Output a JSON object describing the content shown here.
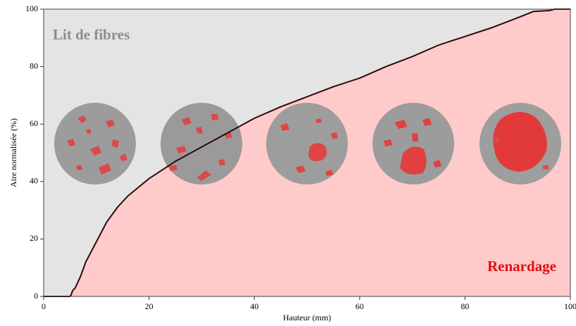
{
  "chart_data": {
    "type": "area-line",
    "x_label": "Hauteur (mm)",
    "y_label": "Aire normalisée (%)",
    "annotations": [
      "Lit de fibres",
      "Renardage"
    ],
    "x": [
      0,
      5,
      5.2,
      5.5,
      6,
      7,
      8,
      10,
      12,
      14,
      16,
      18,
      20,
      25,
      30,
      35,
      40,
      45,
      50,
      55,
      60,
      65,
      70,
      75,
      80,
      85,
      90,
      93,
      96,
      97,
      100
    ],
    "values": [
      0,
      0,
      0.5,
      2,
      3,
      7,
      12,
      19,
      26,
      31,
      35,
      38,
      41,
      47,
      52,
      57,
      62,
      66,
      69.5,
      73,
      76,
      80,
      83.5,
      87.5,
      90.5,
      93.5,
      97,
      99.2,
      99.5,
      100,
      100
    ],
    "color": "#2b0a0a",
    "fill_below": "#ffcaca",
    "fill_above": "#e4e4e4",
    "xlim": [
      0,
      100
    ],
    "ylim": [
      0,
      100
    ],
    "xticks": [
      0,
      20,
      40,
      60,
      80,
      100
    ],
    "yticks": [
      0,
      20,
      40,
      60,
      80,
      100
    ]
  }
}
